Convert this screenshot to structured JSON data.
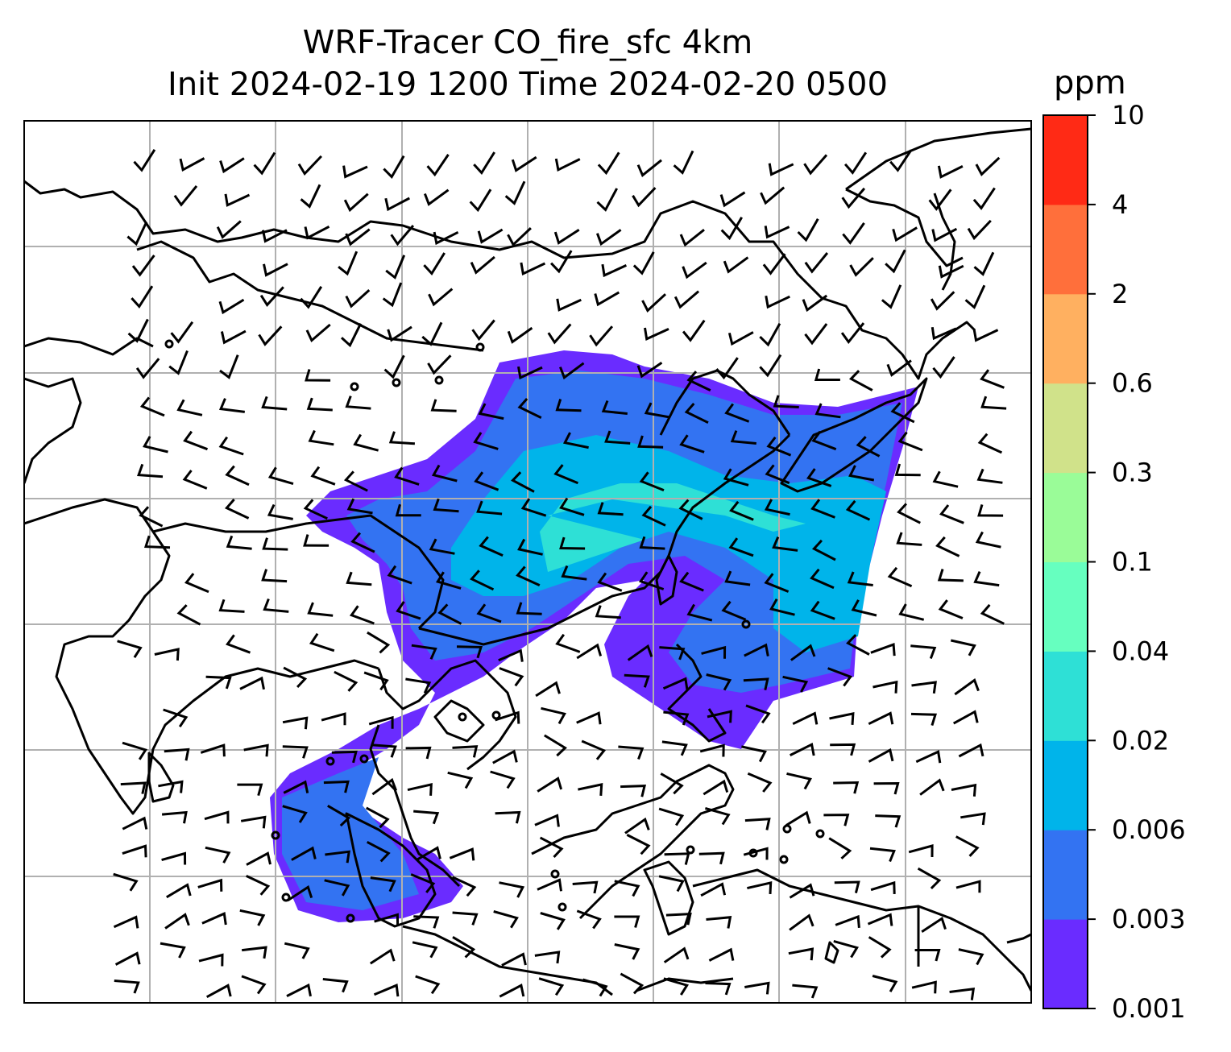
{
  "title": {
    "line1": "WRF-Tracer CO_fire_sfc 4km",
    "line2": "Init 2024-02-19 1200 Time 2024-02-20 0500"
  },
  "colorbar": {
    "unit": "ppm",
    "levels": [
      "0.001",
      "0.003",
      "0.006",
      "0.02",
      "0.04",
      "0.1",
      "0.3",
      "0.6",
      "2",
      "4",
      "10"
    ],
    "colors": [
      "#6a2cff",
      "#3373f2",
      "#00b4ea",
      "#2ee0d6",
      "#66ffbf",
      "#9afc98",
      "#d0e28a",
      "#ffb060",
      "#ff6f3b",
      "#ff2a15"
    ]
  },
  "map": {
    "projection": "map with lat/lon gridlines",
    "gridlines": true,
    "gridline_color": "#b0b0b0",
    "coastline_color": "#000000",
    "wind_barbs": true,
    "filled_field": "CO_fire_sfc"
  }
}
